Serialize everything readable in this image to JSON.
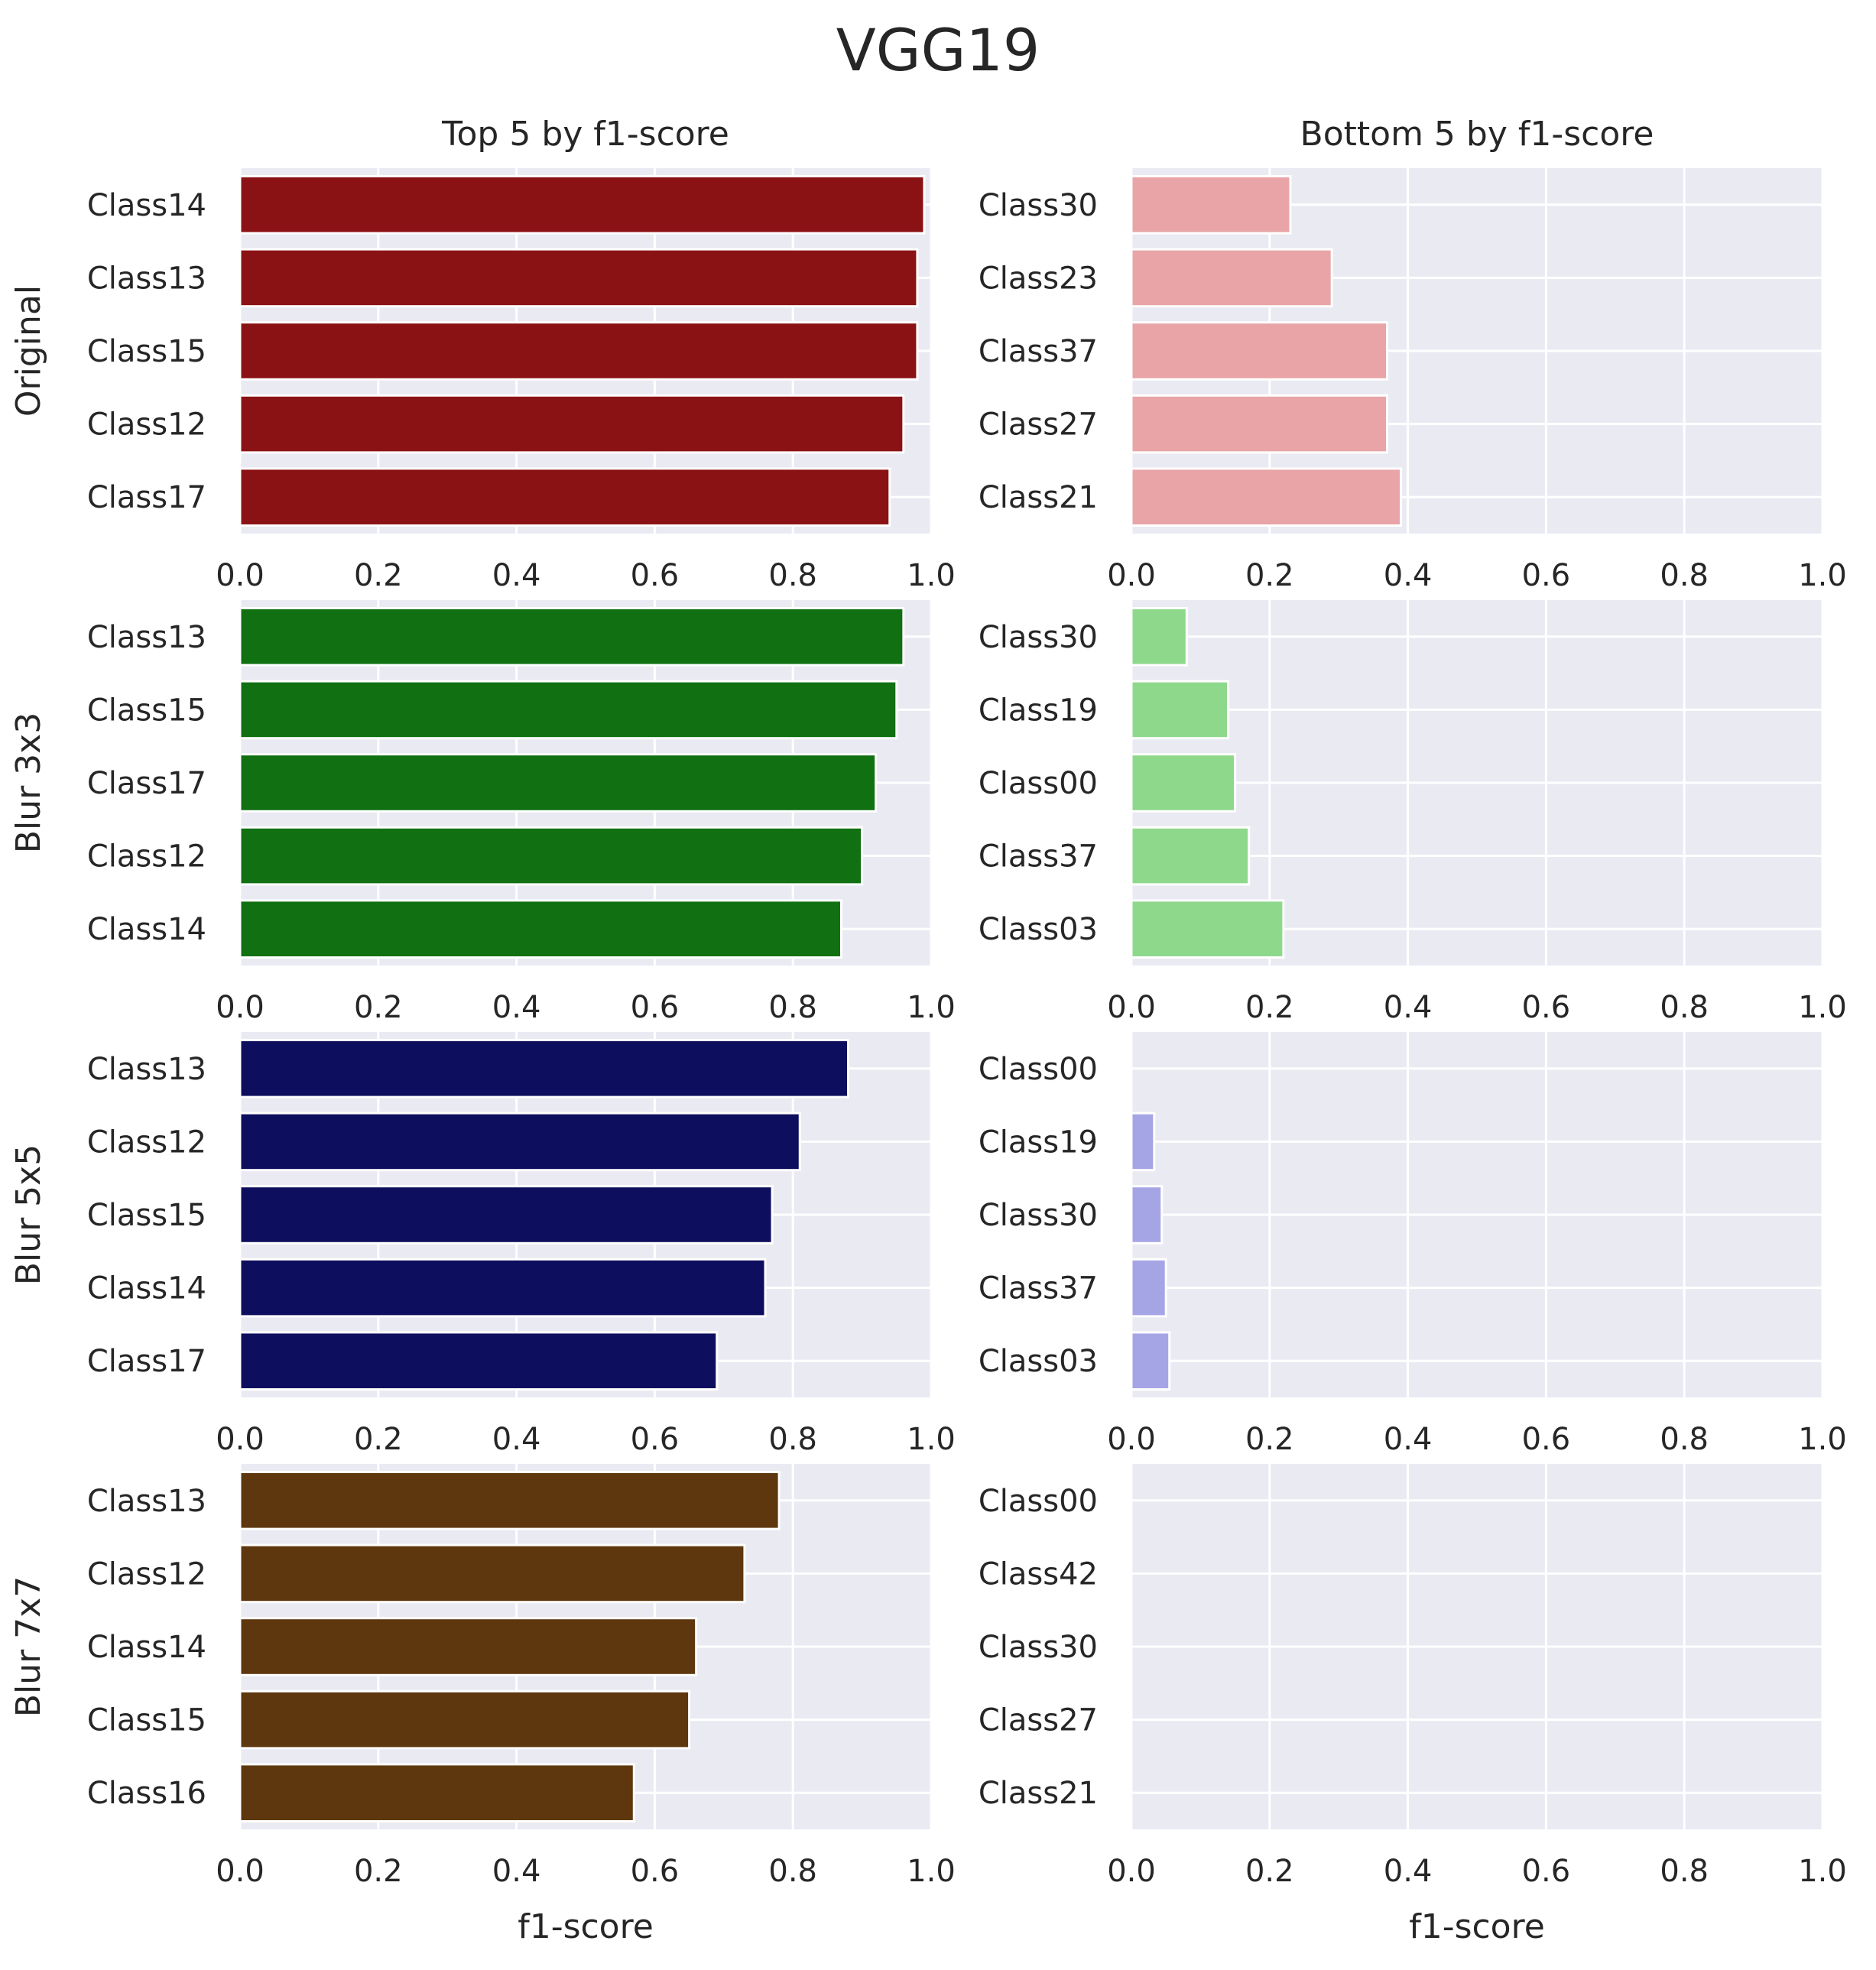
{
  "figure": {
    "title": "VGG19",
    "column_titles": [
      "Top 5 by f1-score",
      "Bottom 5 by f1-score"
    ],
    "xlabel": "f1-score"
  },
  "chart_data": [
    {
      "type": "bar",
      "orientation": "horizontal",
      "row_label": "Original",
      "subtitle": "Top 5 by f1-score",
      "color": "#8B1214",
      "categories": [
        "Class14",
        "Class13",
        "Class15",
        "Class12",
        "Class17"
      ],
      "values": [
        0.99,
        0.98,
        0.98,
        0.96,
        0.94
      ],
      "xlim": [
        0,
        1
      ],
      "xticks": [
        "0.0",
        "0.2",
        "0.4",
        "0.6",
        "0.8",
        "1.0"
      ],
      "grid": true
    },
    {
      "type": "bar",
      "orientation": "horizontal",
      "row_label": "Original",
      "subtitle": "Bottom 5 by f1-score",
      "color": "#E8A4A6",
      "categories": [
        "Class30",
        "Class23",
        "Class37",
        "Class27",
        "Class21"
      ],
      "values": [
        0.23,
        0.29,
        0.37,
        0.37,
        0.39
      ],
      "xlim": [
        0,
        1
      ],
      "xticks": [
        "0.0",
        "0.2",
        "0.4",
        "0.6",
        "0.8",
        "1.0"
      ],
      "grid": true
    },
    {
      "type": "bar",
      "orientation": "horizontal",
      "row_label": "Blur 3x3",
      "subtitle": "Top 5 by f1-score",
      "color": "#107012",
      "categories": [
        "Class13",
        "Class15",
        "Class17",
        "Class12",
        "Class14"
      ],
      "values": [
        0.96,
        0.95,
        0.92,
        0.9,
        0.87
      ],
      "xlim": [
        0,
        1
      ],
      "xticks": [
        "0.0",
        "0.2",
        "0.4",
        "0.6",
        "0.8",
        "1.0"
      ],
      "grid": true
    },
    {
      "type": "bar",
      "orientation": "horizontal",
      "row_label": "Blur 3x3",
      "subtitle": "Bottom 5 by f1-score",
      "color": "#8ED88C",
      "categories": [
        "Class30",
        "Class19",
        "Class00",
        "Class37",
        "Class03"
      ],
      "values": [
        0.08,
        0.14,
        0.15,
        0.17,
        0.22
      ],
      "xlim": [
        0,
        1
      ],
      "xticks": [
        "0.0",
        "0.2",
        "0.4",
        "0.6",
        "0.8",
        "1.0"
      ],
      "grid": true
    },
    {
      "type": "bar",
      "orientation": "horizontal",
      "row_label": "Blur 5x5",
      "subtitle": "Top 5 by f1-score",
      "color": "#0E0E5E",
      "categories": [
        "Class13",
        "Class12",
        "Class15",
        "Class14",
        "Class17"
      ],
      "values": [
        0.88,
        0.81,
        0.77,
        0.76,
        0.69
      ],
      "xlim": [
        0,
        1
      ],
      "xticks": [
        "0.0",
        "0.2",
        "0.4",
        "0.6",
        "0.8",
        "1.0"
      ],
      "grid": true
    },
    {
      "type": "bar",
      "orientation": "horizontal",
      "row_label": "Blur 5x5",
      "subtitle": "Bottom 5 by f1-score",
      "color": "#A5A5E6",
      "categories": [
        "Class00",
        "Class19",
        "Class30",
        "Class37",
        "Class03"
      ],
      "values": [
        0.0,
        0.033,
        0.044,
        0.05,
        0.055
      ],
      "xlim": [
        0,
        1
      ],
      "xticks": [
        "0.0",
        "0.2",
        "0.4",
        "0.6",
        "0.8",
        "1.0"
      ],
      "grid": true
    },
    {
      "type": "bar",
      "orientation": "horizontal",
      "row_label": "Blur 7x7",
      "subtitle": "Top 5 by f1-score",
      "color": "#5E370E",
      "categories": [
        "Class13",
        "Class12",
        "Class14",
        "Class15",
        "Class16"
      ],
      "values": [
        0.78,
        0.73,
        0.66,
        0.65,
        0.57
      ],
      "xlim": [
        0,
        1
      ],
      "xticks": [
        "0.0",
        "0.2",
        "0.4",
        "0.6",
        "0.8",
        "1.0"
      ],
      "grid": true
    },
    {
      "type": "bar",
      "orientation": "horizontal",
      "row_label": "Blur 7x7",
      "subtitle": "Bottom 5 by f1-score",
      "color": "#D2B48C",
      "categories": [
        "Class00",
        "Class42",
        "Class30",
        "Class27",
        "Class21"
      ],
      "values": [
        0.0,
        0.0,
        0.0,
        0.0,
        0.0
      ],
      "xlim": [
        0,
        1
      ],
      "xticks": [
        "0.0",
        "0.2",
        "0.4",
        "0.6",
        "0.8",
        "1.0"
      ],
      "grid": true
    }
  ]
}
